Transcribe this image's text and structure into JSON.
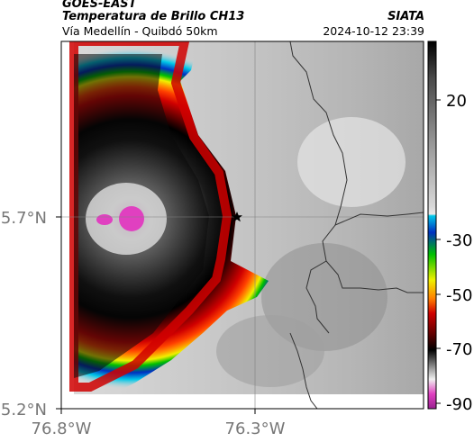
{
  "header": {
    "satellite": "GOES-EAST",
    "product": "Temperatura de Brillo CH13",
    "subtitle": "Vía Medellín - Quibdó 50km",
    "source": "SIATA",
    "datetime": "2024-10-12 23:39"
  },
  "map": {
    "lat_labels": [
      "5.7°N",
      "5.2°N"
    ],
    "lon_labels": [
      "76.8°W",
      "76.3°W"
    ],
    "marker": "star-marker"
  },
  "colorbar": {
    "tick_labels": [
      "20",
      "-30",
      "-50",
      "-70",
      "-90"
    ],
    "colors": {
      "warm_top": "#111111",
      "gray_mid": "#9a9a9a",
      "cyan": "#00c8e8",
      "blue": "#0030c0",
      "green": "#00c000",
      "yellow": "#f0f000",
      "orange": "#ff8000",
      "red": "#d00000",
      "darkred": "#5a0000",
      "black": "#000000",
      "white": "#f0f0f0",
      "magenta": "#e040c0"
    }
  }
}
